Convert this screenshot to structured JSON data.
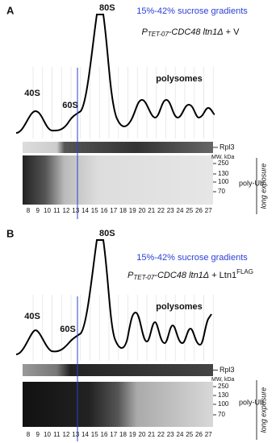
{
  "panels": [
    {
      "label": "A",
      "peak_80S": "80S",
      "gradient": "15%-42% sucrose gradients",
      "genotype": {
        "promoter": "P",
        "promoter_sub": "TET-07",
        "strain": "-CDC48 ltn1Δ",
        "addition": "+ V"
      },
      "peak_40S": "40S",
      "peak_60S": "60S",
      "polysomes": "polysomes",
      "blot_label": "Rpl3",
      "mw_header": "MW, kDa",
      "mw_markers": [
        250,
        130,
        100,
        70
      ],
      "blot2_label": "poly-Ub",
      "exposure": "long exposure",
      "fractions": [
        8,
        9,
        10,
        11,
        12,
        13,
        14,
        15,
        16,
        17,
        18,
        19,
        20,
        21,
        22,
        23,
        24,
        25,
        26,
        27
      ]
    },
    {
      "label": "B",
      "peak_80S": "80S",
      "gradient": "15%-42% sucrose gradients",
      "genotype": {
        "promoter": "P",
        "promoter_sub": "TET-07",
        "strain": "-CDC48 ltn1Δ",
        "addition": "+ Ltn1",
        "addition_sup": "FLAG"
      },
      "peak_40S": "40S",
      "peak_60S": "60S",
      "polysomes": "polysomes",
      "blot_label": "Rpl3",
      "mw_header": "MW, kDa",
      "mw_markers": [
        250,
        130,
        100,
        70
      ],
      "blot2_label": "poly-Ub",
      "exposure": "long exposure",
      "fractions": [
        8,
        9,
        10,
        11,
        12,
        13,
        14,
        15,
        16,
        17,
        18,
        19,
        20,
        21,
        22,
        23,
        24,
        25,
        26,
        27
      ]
    }
  ]
}
